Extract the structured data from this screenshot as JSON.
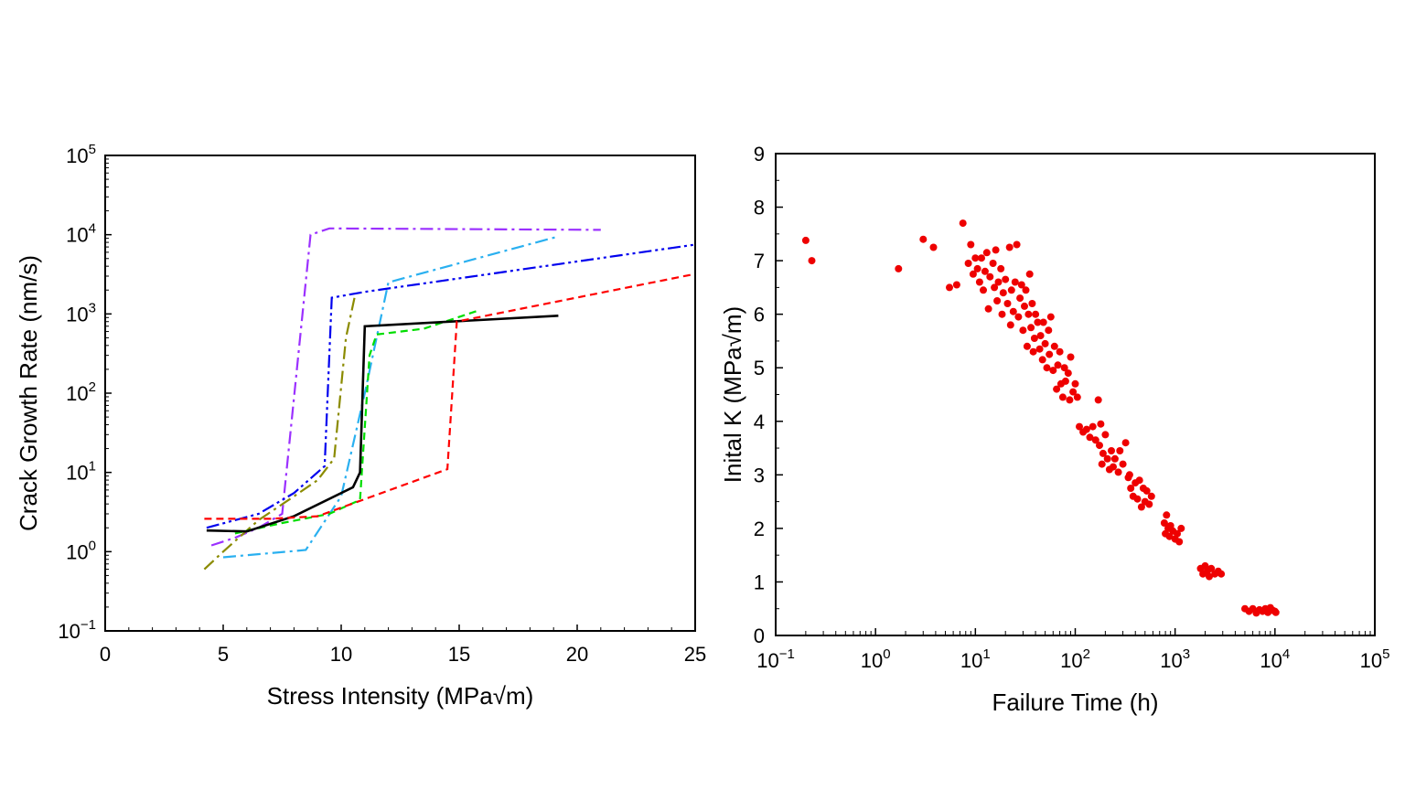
{
  "chart_data": [
    {
      "type": "line",
      "xlabel": "Stress Intensity (MPa√m)",
      "ylabel": "Crack Growth Rate (nm/s)",
      "xlim": [
        0,
        25
      ],
      "ylim": [
        0.1,
        100000
      ],
      "yscale": "log",
      "xticks": [
        0,
        5,
        10,
        15,
        20,
        25
      ],
      "xtick_labels": [
        "0",
        "5",
        "10",
        "15",
        "20",
        "25"
      ],
      "yticks": [
        {
          "value": 0.1,
          "base": "10",
          "exp": "−1"
        },
        {
          "value": 1,
          "base": "10",
          "exp": "0"
        },
        {
          "value": 10,
          "base": "10",
          "exp": "1"
        },
        {
          "value": 100,
          "base": "10",
          "exp": "2"
        },
        {
          "value": 1000,
          "base": "10",
          "exp": "3"
        },
        {
          "value": 10000,
          "base": "10",
          "exp": "4"
        },
        {
          "value": 100000,
          "base": "10",
          "exp": "5"
        }
      ],
      "grid": false,
      "series": [
        {
          "color": "#9b30ff",
          "dash": "dashdot",
          "points": [
            [
              4.5,
              1.2
            ],
            [
              5.5,
              1.5
            ],
            [
              6.5,
              2.0
            ],
            [
              7.5,
              3.0
            ],
            [
              8.7,
              10000
            ],
            [
              9.5,
              12000
            ],
            [
              21,
              11500
            ]
          ]
        },
        {
          "color": "#0000ee",
          "dash": "dashdotdot",
          "points": [
            [
              4.3,
              2.0
            ],
            [
              6.5,
              3.0
            ],
            [
              8.0,
              5.5
            ],
            [
              9.3,
              12
            ],
            [
              9.6,
              1600
            ],
            [
              11.0,
              1900
            ],
            [
              25,
              7500
            ]
          ]
        },
        {
          "color": "#8b8b00",
          "dash": "dashdot",
          "points": [
            [
              4.2,
              0.6
            ],
            [
              5.0,
              1.0
            ],
            [
              6.5,
              2.5
            ],
            [
              8.0,
              5.0
            ],
            [
              9.0,
              8.0
            ],
            [
              9.7,
              15
            ],
            [
              10.2,
              500
            ],
            [
              10.6,
              1800
            ]
          ]
        },
        {
          "color": "#2ab0f0",
          "dash": "dashdot",
          "points": [
            [
              5.0,
              0.85
            ],
            [
              8.5,
              1.05
            ],
            [
              10.0,
              5.0
            ],
            [
              11.0,
              100
            ],
            [
              12.0,
              2500
            ],
            [
              19.2,
              9500
            ]
          ]
        },
        {
          "color": "#00dd00",
          "dash": "dashed",
          "points": [
            [
              5.5,
              1.7
            ],
            [
              7.5,
              2.3
            ],
            [
              9.5,
              3.0
            ],
            [
              10.8,
              4.5
            ],
            [
              11.2,
              300
            ],
            [
              11.5,
              550
            ],
            [
              13.5,
              650
            ],
            [
              15.8,
              1100
            ]
          ]
        },
        {
          "color": "#000000",
          "dash": "solid",
          "points": [
            [
              4.3,
              1.85
            ],
            [
              6.0,
              1.8
            ],
            [
              8.0,
              2.8
            ],
            [
              10.5,
              6.5
            ],
            [
              10.8,
              10
            ],
            [
              11.0,
              700
            ],
            [
              19.2,
              950
            ]
          ]
        },
        {
          "color": "#ff0000",
          "dash": "dashed",
          "points": [
            [
              4.2,
              2.6
            ],
            [
              7.0,
              2.6
            ],
            [
              9.0,
              2.8
            ],
            [
              14.5,
              11
            ],
            [
              14.9,
              800
            ],
            [
              25,
              3200
            ]
          ]
        }
      ]
    },
    {
      "type": "scatter",
      "xlabel": "Failure Time (h)",
      "ylabel": "Inital K (MPa√m)",
      "xlim": [
        0.1,
        100000
      ],
      "xscale": "log",
      "ylim": [
        0,
        9
      ],
      "xticks": [
        {
          "value": 0.1,
          "base": "10",
          "exp": "−1"
        },
        {
          "value": 1,
          "base": "10",
          "exp": "0"
        },
        {
          "value": 10,
          "base": "10",
          "exp": "1"
        },
        {
          "value": 100,
          "base": "10",
          "exp": "2"
        },
        {
          "value": 1000,
          "base": "10",
          "exp": "3"
        },
        {
          "value": 10000,
          "base": "10",
          "exp": "4"
        },
        {
          "value": 100000,
          "base": "10",
          "exp": "5"
        }
      ],
      "yticks": [
        0,
        1,
        2,
        3,
        4,
        5,
        6,
        7,
        8,
        9
      ],
      "ytick_labels": [
        "0",
        "1",
        "2",
        "3",
        "4",
        "5",
        "6",
        "7",
        "8",
        "9"
      ],
      "grid": false,
      "marker_color": "#ee0000",
      "points": [
        [
          0.2,
          7.38
        ],
        [
          0.23,
          7.0
        ],
        [
          1.7,
          6.85
        ],
        [
          3.0,
          7.4
        ],
        [
          3.8,
          7.25
        ],
        [
          5.5,
          6.5
        ],
        [
          6.5,
          6.55
        ],
        [
          7.5,
          7.7
        ],
        [
          8.5,
          6.95
        ],
        [
          9.0,
          7.3
        ],
        [
          9.5,
          6.75
        ],
        [
          10,
          7.05
        ],
        [
          10.5,
          6.85
        ],
        [
          11,
          6.6
        ],
        [
          11.5,
          7.05
        ],
        [
          12,
          6.45
        ],
        [
          12.5,
          6.8
        ],
        [
          13,
          7.15
        ],
        [
          13.5,
          6.1
        ],
        [
          14,
          6.7
        ],
        [
          15,
          6.95
        ],
        [
          15.5,
          6.5
        ],
        [
          16,
          7.2
        ],
        [
          16.5,
          6.25
        ],
        [
          17,
          6.6
        ],
        [
          18,
          6.85
        ],
        [
          18.5,
          6.0
        ],
        [
          19,
          6.4
        ],
        [
          20,
          6.65
        ],
        [
          21,
          6.2
        ],
        [
          22,
          7.25
        ],
        [
          22.5,
          5.8
        ],
        [
          23,
          6.45
        ],
        [
          24,
          6.05
        ],
        [
          25,
          6.6
        ],
        [
          26,
          7.3
        ],
        [
          27,
          5.95
        ],
        [
          28,
          6.3
        ],
        [
          29,
          6.55
        ],
        [
          30,
          5.7
        ],
        [
          31,
          6.15
        ],
        [
          32,
          6.45
        ],
        [
          33,
          5.4
        ],
        [
          34,
          6.0
        ],
        [
          35,
          6.75
        ],
        [
          36,
          5.75
        ],
        [
          37,
          6.2
        ],
        [
          38,
          5.3
        ],
        [
          39,
          5.55
        ],
        [
          40,
          6.0
        ],
        [
          42,
          5.85
        ],
        [
          44,
          5.35
        ],
        [
          45,
          5.6
        ],
        [
          47,
          5.15
        ],
        [
          48,
          5.85
        ],
        [
          50,
          5.45
        ],
        [
          52,
          5.0
        ],
        [
          54,
          5.7
        ],
        [
          55,
          5.25
        ],
        [
          57,
          5.95
        ],
        [
          60,
          4.95
        ],
        [
          62,
          5.4
        ],
        [
          65,
          4.6
        ],
        [
          67,
          5.05
        ],
        [
          70,
          5.3
        ],
        [
          72,
          4.7
        ],
        [
          75,
          4.45
        ],
        [
          78,
          5.0
        ],
        [
          80,
          4.75
        ],
        [
          85,
          4.9
        ],
        [
          88,
          4.4
        ],
        [
          90,
          5.2
        ],
        [
          95,
          4.55
        ],
        [
          100,
          4.7
        ],
        [
          105,
          4.45
        ],
        [
          110,
          3.9
        ],
        [
          120,
          3.8
        ],
        [
          130,
          3.85
        ],
        [
          140,
          3.7
        ],
        [
          150,
          3.9
        ],
        [
          160,
          3.65
        ],
        [
          170,
          4.4
        ],
        [
          175,
          3.55
        ],
        [
          180,
          3.95
        ],
        [
          185,
          3.2
        ],
        [
          190,
          3.4
        ],
        [
          200,
          3.75
        ],
        [
          210,
          3.3
        ],
        [
          220,
          3.1
        ],
        [
          230,
          3.45
        ],
        [
          240,
          3.15
        ],
        [
          250,
          3.3
        ],
        [
          270,
          3.05
        ],
        [
          280,
          3.45
        ],
        [
          300,
          3.2
        ],
        [
          320,
          3.6
        ],
        [
          340,
          2.95
        ],
        [
          350,
          3.0
        ],
        [
          360,
          2.75
        ],
        [
          380,
          2.6
        ],
        [
          400,
          2.85
        ],
        [
          420,
          2.55
        ],
        [
          440,
          2.9
        ],
        [
          460,
          2.4
        ],
        [
          480,
          2.75
        ],
        [
          500,
          2.5
        ],
        [
          520,
          2.7
        ],
        [
          550,
          2.45
        ],
        [
          580,
          2.6
        ],
        [
          780,
          2.1
        ],
        [
          800,
          1.9
        ],
        [
          820,
          2.25
        ],
        [
          850,
          2.0
        ],
        [
          880,
          1.85
        ],
        [
          900,
          2.05
        ],
        [
          950,
          1.95
        ],
        [
          1000,
          1.8
        ],
        [
          1050,
          1.9
        ],
        [
          1100,
          1.75
        ],
        [
          1150,
          2.0
        ],
        [
          1800,
          1.25
        ],
        [
          1900,
          1.15
        ],
        [
          2000,
          1.3
        ],
        [
          2100,
          1.2
        ],
        [
          2200,
          1.1
        ],
        [
          2300,
          1.25
        ],
        [
          2500,
          1.15
        ],
        [
          2700,
          1.2
        ],
        [
          2900,
          1.15
        ],
        [
          5000,
          0.5
        ],
        [
          5500,
          0.45
        ],
        [
          6000,
          0.5
        ],
        [
          6500,
          0.42
        ],
        [
          7000,
          0.48
        ],
        [
          7500,
          0.45
        ],
        [
          8000,
          0.5
        ],
        [
          8500,
          0.43
        ],
        [
          9000,
          0.52
        ],
        [
          9500,
          0.47
        ],
        [
          10000,
          0.45
        ],
        [
          10200,
          0.43
        ]
      ]
    }
  ]
}
